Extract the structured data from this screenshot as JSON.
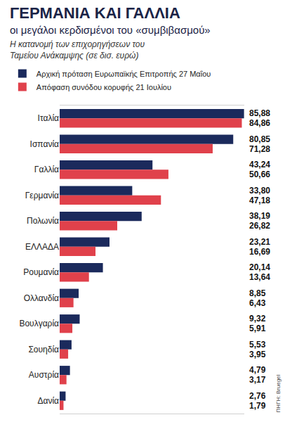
{
  "chart_data": {
    "type": "bar",
    "orientation": "horizontal",
    "title": "ΓΕΡΜΑΝΙΑ ΚΑΙ ΓΑΛΛΙΑ",
    "subtitle": "οι μεγάλοι κερδισμένοι του «συμβιβασμού»",
    "description": "Η κατανομή των επιχορηγήσεων του Ταμείου Ανάκαμψης (σε δισ. ευρώ)",
    "source": "ΠΗΓΗ: Bruegel",
    "categories": [
      "Ιταλία",
      "Ισπανία",
      "Γαλλία",
      "Γερμανία",
      "Πολωνία",
      "ΕΛΛΑΔΑ",
      "Ρουμανία",
      "Ολλανδία",
      "Βουλγαρία",
      "Σουηδία",
      "Αυστρία",
      "Δανία"
    ],
    "series": [
      {
        "name": "Αρχική πρόταση Ευρωπαϊκής Επιτροπής 27 Μαΐου",
        "color": "#1b2a5c",
        "values": [
          85.88,
          80.85,
          43.24,
          33.8,
          38.19,
          23.21,
          20.14,
          8.85,
          9.32,
          5.53,
          4.79,
          2.76
        ],
        "value_labels": [
          "85,88",
          "80,85",
          "43,24",
          "33,80",
          "38,19",
          "23,21",
          "20,14",
          "8,85",
          "9,32",
          "5,53",
          "4,79",
          "2,76"
        ]
      },
      {
        "name": "Απόφαση συνόδου κορυφής 21 Ιουλίου",
        "color": "#e0414b",
        "values": [
          84.86,
          71.28,
          50.66,
          47.18,
          26.82,
          16.69,
          13.64,
          6.43,
          5.91,
          3.95,
          3.17,
          1.79
        ],
        "value_labels": [
          "84,86",
          "71,28",
          "50,66",
          "47,18",
          "26,82",
          "16,69",
          "13,64",
          "6,43",
          "5,91",
          "3,95",
          "3,17",
          "1,79"
        ]
      }
    ],
    "xlim": [
      0,
      86
    ],
    "data_labels": true,
    "tick_labels": "y",
    "grid": false,
    "legend": "top left"
  }
}
